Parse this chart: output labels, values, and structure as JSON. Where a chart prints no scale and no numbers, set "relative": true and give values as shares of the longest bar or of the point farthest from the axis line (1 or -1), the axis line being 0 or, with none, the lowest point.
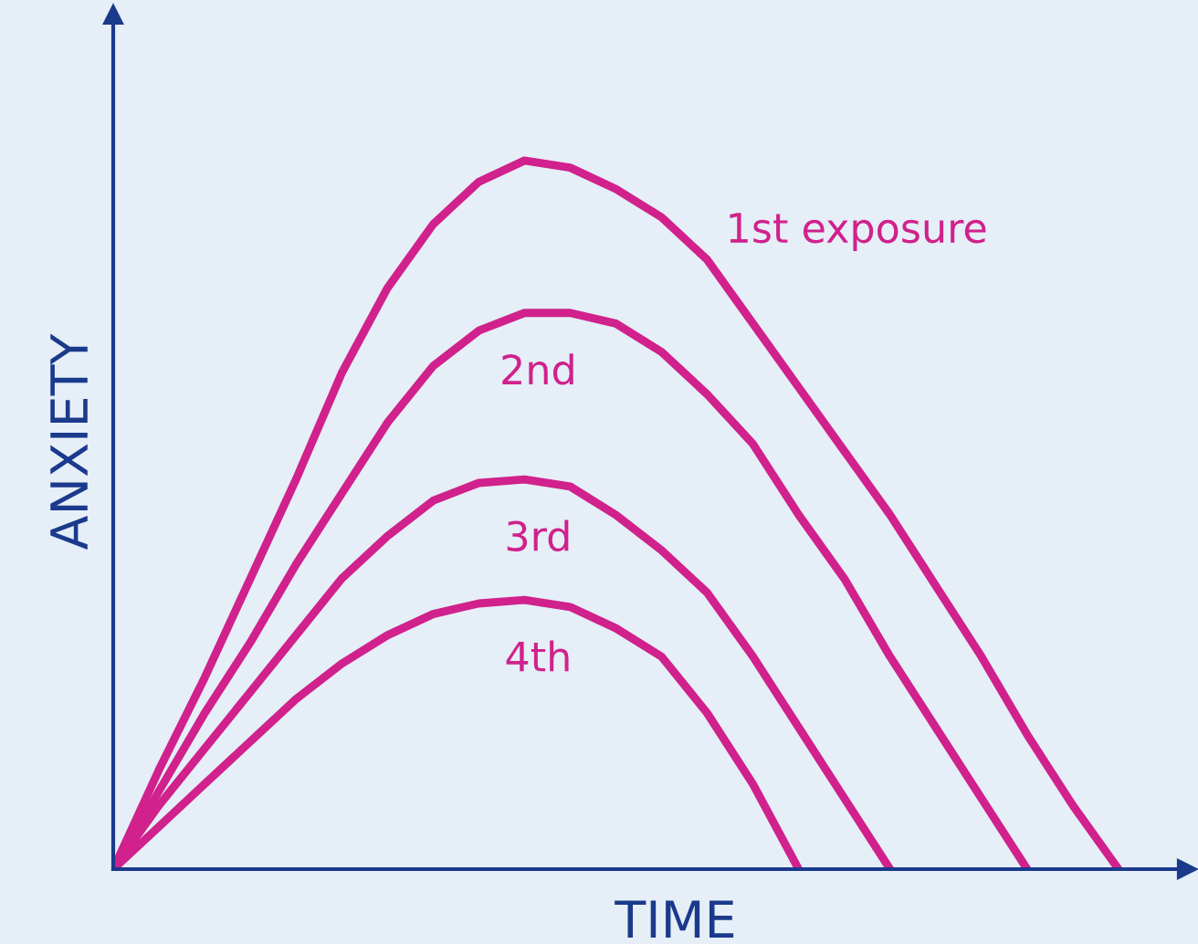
{
  "chart_data": {
    "type": "line",
    "relative": true,
    "xlabel": "TIME",
    "ylabel": "ANXIETY",
    "legend": false,
    "marker": "none",
    "line_style": "solid",
    "categories": [
      null,
      null,
      null,
      null,
      null,
      null,
      null,
      null,
      null,
      null,
      null,
      null,
      null,
      null,
      null,
      null,
      null,
      null,
      null,
      null,
      null,
      null,
      null,
      null
    ],
    "series": [
      {
        "name": "1st exposure",
        "color": "#d0218c",
        "values": [
          0,
          0.14,
          0.27,
          0.41,
          0.55,
          0.7,
          0.82,
          0.91,
          0.97,
          1.0,
          0.99,
          0.96,
          0.92,
          0.86,
          0.77,
          0.68,
          0.59,
          0.5,
          0.4,
          0.3,
          0.19,
          0.09,
          0,
          null
        ]
      },
      {
        "name": "2nd",
        "color": "#d0218c",
        "values": [
          0,
          0.11,
          0.22,
          0.32,
          0.43,
          0.53,
          0.63,
          0.71,
          0.76,
          0.785,
          0.785,
          0.77,
          0.73,
          0.67,
          0.6,
          0.5,
          0.41,
          0.3,
          0.2,
          0.1,
          0,
          null,
          null,
          null
        ]
      },
      {
        "name": "3rd",
        "color": "#d0218c",
        "values": [
          0,
          0.09,
          0.17,
          0.25,
          0.33,
          0.41,
          0.47,
          0.52,
          0.545,
          0.55,
          0.54,
          0.5,
          0.45,
          0.39,
          0.3,
          0.2,
          0.1,
          0,
          null,
          null,
          null,
          null,
          null,
          null
        ]
      },
      {
        "name": "4th",
        "color": "#d0218c",
        "values": [
          0,
          0.06,
          0.12,
          0.18,
          0.24,
          0.29,
          0.33,
          0.36,
          0.375,
          0.38,
          0.37,
          0.34,
          0.3,
          0.22,
          0.12,
          0,
          null,
          null,
          null,
          null,
          null,
          null,
          null,
          null
        ]
      }
    ]
  }
}
